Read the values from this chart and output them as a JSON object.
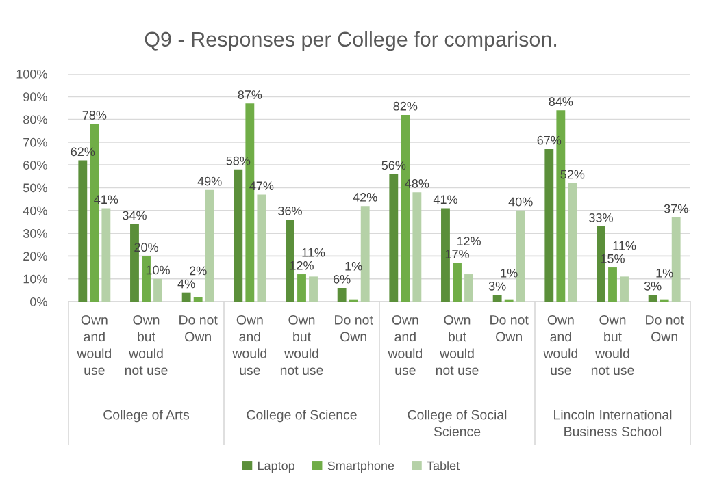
{
  "chart_data": {
    "type": "bar",
    "title": "Q9 - Responses per College for comparison.",
    "categories": [
      "Own\nand\nwould\nuse",
      "Own\nbut\nwould\nnot use",
      "Do not\nOwn",
      "Own\nand\nwould\nuse",
      "Own\nbut\nwould\nnot use",
      "Do not\nOwn",
      "Own\nand\nwould\nuse",
      "Own\nbut\nwould\nnot use",
      "Do not\nOwn",
      "Own\nand\nwould\nuse",
      "Own\nbut\nwould\nnot use",
      "Do not\nOwn"
    ],
    "annotations": [
      "College of Arts",
      "College of Science",
      "College of Social\nScience",
      "Lincoln International\nBusiness School"
    ],
    "series": [
      {
        "name": "Laptop",
        "color": "#5b8f3a",
        "values": [
          62,
          34,
          4,
          58,
          36,
          6,
          56,
          41,
          3,
          67,
          33,
          3
        ],
        "value_labels": [
          "62%",
          "34%",
          "4%",
          "58%",
          "36%",
          "6%",
          "56%",
          "41%",
          "3%",
          "67%",
          "33%",
          "3%"
        ]
      },
      {
        "name": "Smartphone",
        "color": "#70ad47",
        "values": [
          78,
          20,
          2,
          87,
          12,
          1,
          82,
          17,
          1,
          84,
          15,
          1
        ],
        "value_labels": [
          "78%",
          "20%",
          "2%",
          "87%",
          "12%",
          "1%",
          "82%",
          "17%",
          "1%",
          "84%",
          "15%",
          "1%"
        ]
      },
      {
        "name": "Tablet",
        "color": "#b5d1a7",
        "values": [
          41,
          10,
          49,
          47,
          11,
          42,
          48,
          12,
          40,
          52,
          11,
          37
        ],
        "value_labels": [
          "41%",
          "10%",
          "49%",
          "47%",
          "11%",
          "42%",
          "48%",
          "12%",
          "40%",
          "52%",
          "11%",
          "37%"
        ]
      }
    ],
    "ylim": [
      0,
      100
    ],
    "yticks": [
      {
        "value": 0,
        "label": "0%"
      },
      {
        "value": 10,
        "label": "10%"
      },
      {
        "value": 20,
        "label": "20%"
      },
      {
        "value": 30,
        "label": "30%"
      },
      {
        "value": 40,
        "label": "40%"
      },
      {
        "value": 50,
        "label": "50%"
      },
      {
        "value": 60,
        "label": "60%"
      },
      {
        "value": 70,
        "label": "70%"
      },
      {
        "value": 80,
        "label": "80%"
      },
      {
        "value": 90,
        "label": "90%"
      },
      {
        "value": 100,
        "label": "100%"
      }
    ],
    "grid": "y",
    "legend": "bottom"
  }
}
